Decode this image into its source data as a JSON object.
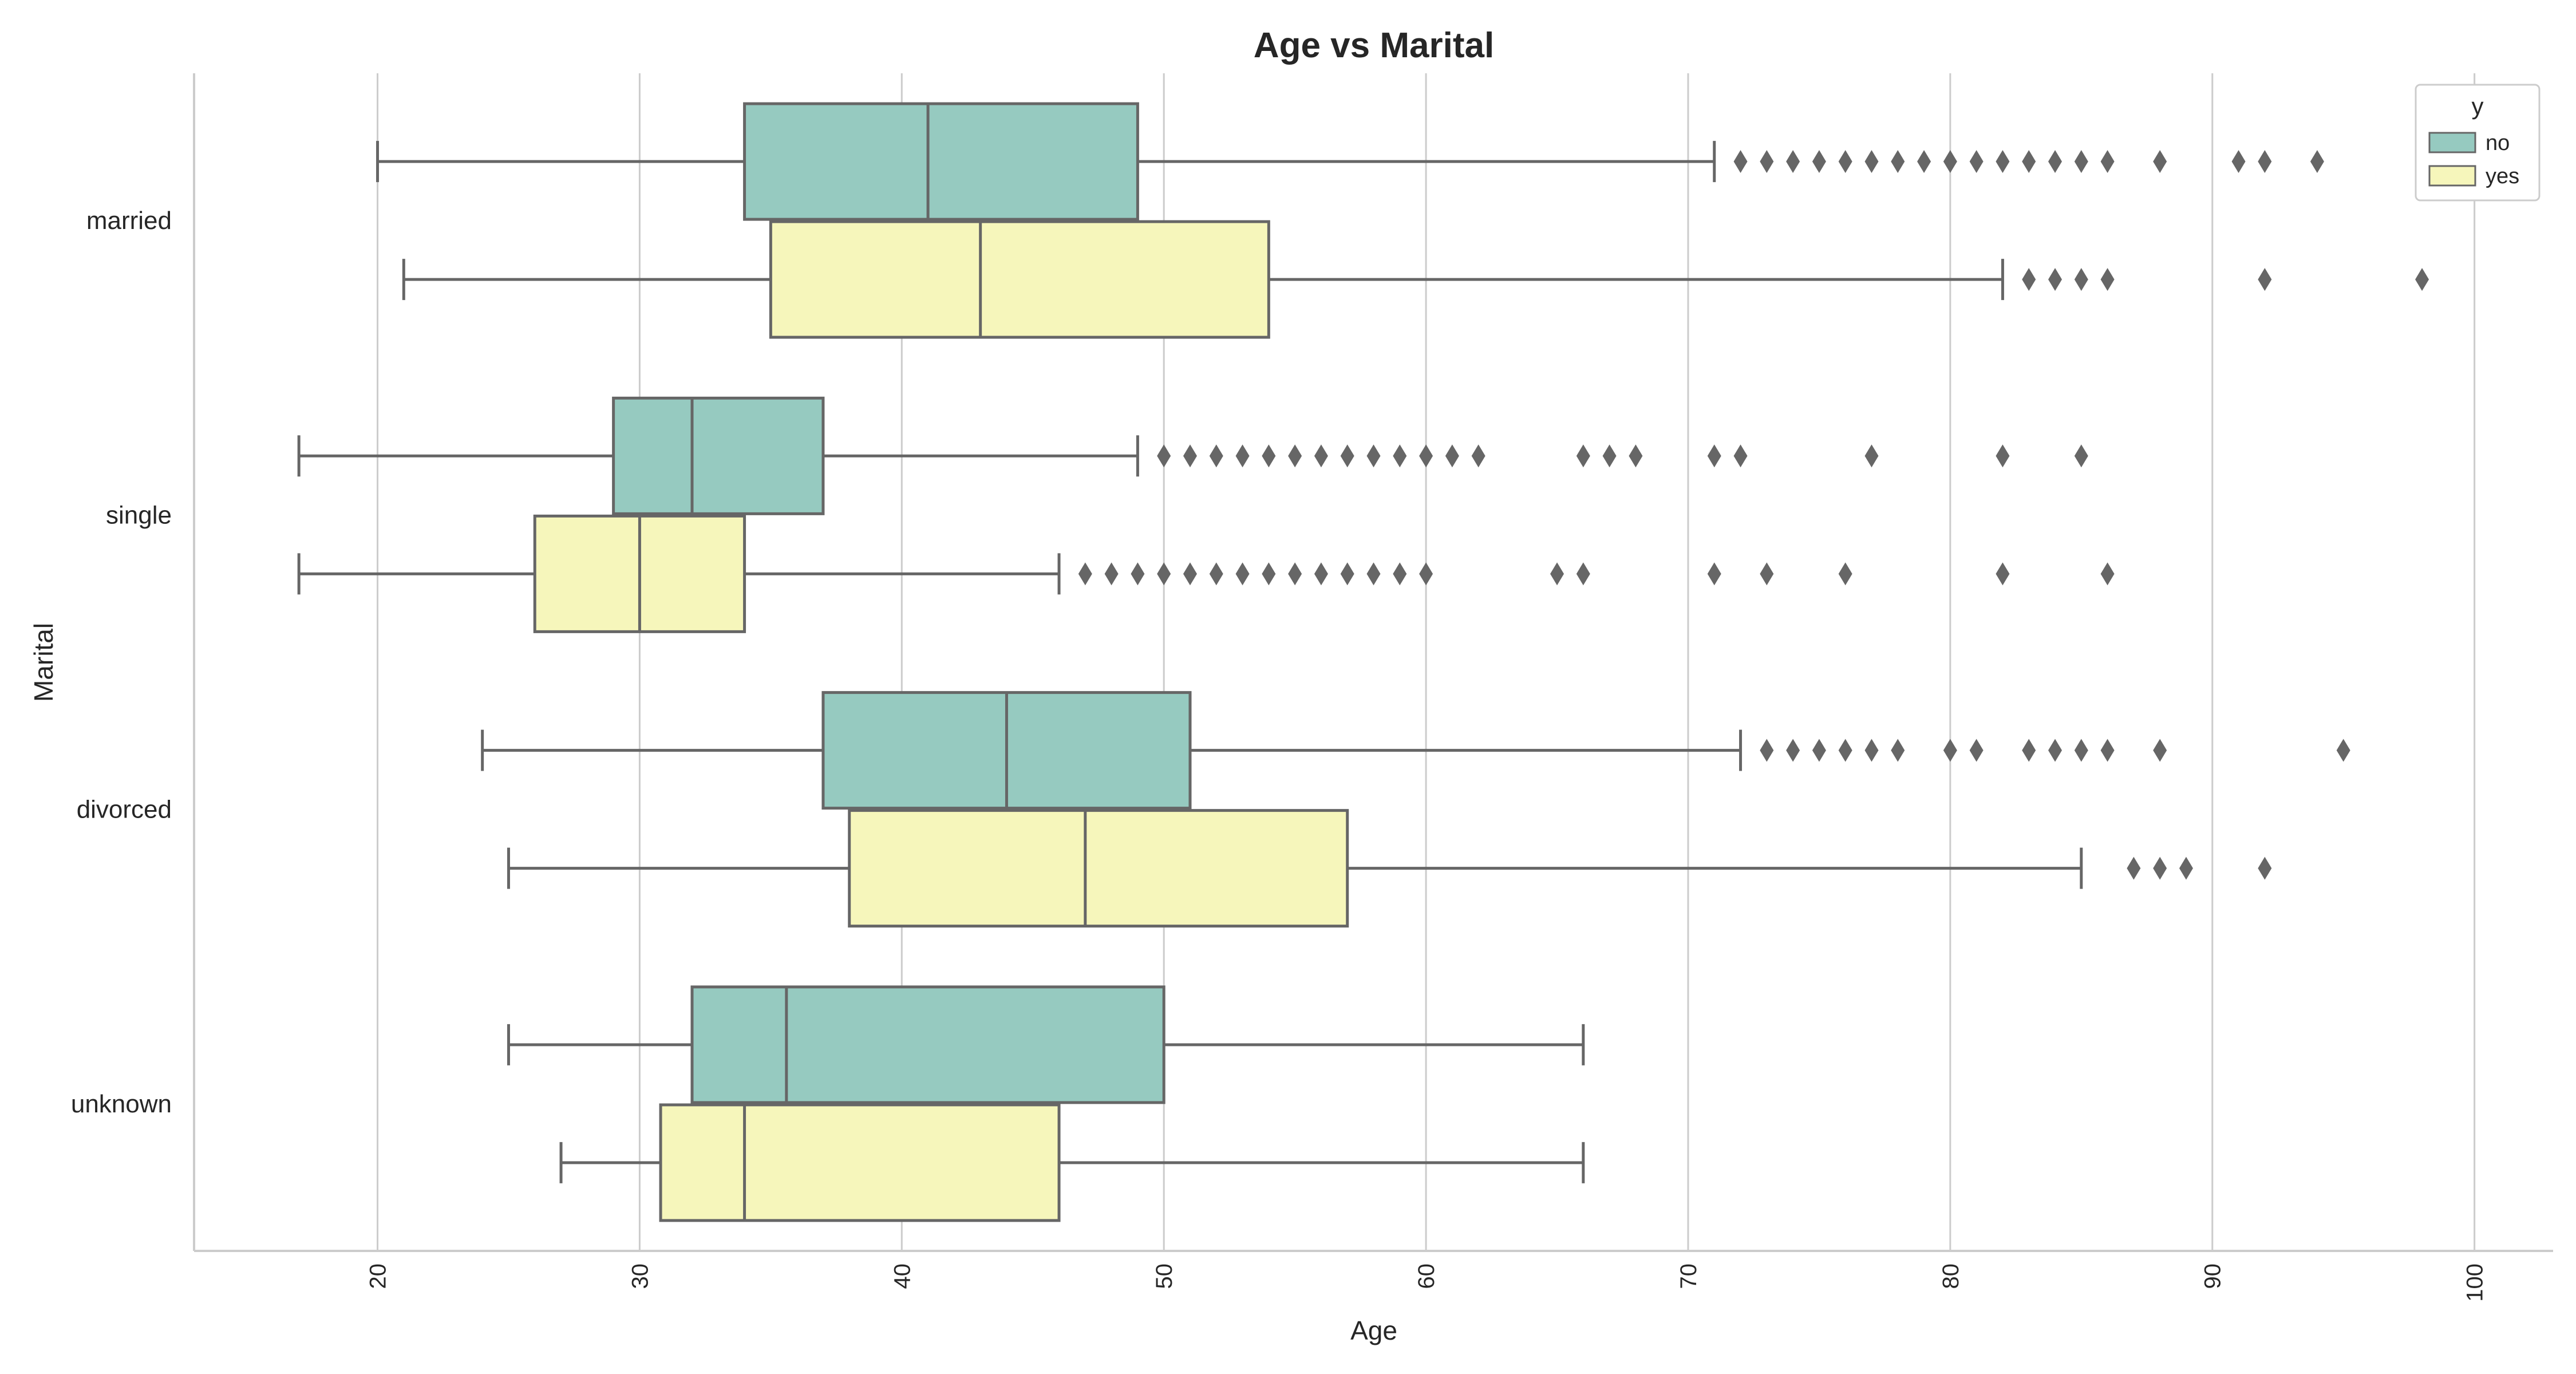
{
  "chart_data": {
    "type": "boxplot",
    "orientation": "horizontal",
    "title": "Age vs Marital",
    "xlabel": "Age",
    "ylabel": "Marital",
    "xlim": [
      13,
      103
    ],
    "xticks": [
      20,
      30,
      40,
      50,
      60,
      70,
      80,
      90,
      100
    ],
    "xtick_labels": [
      "20",
      "30",
      "40",
      "50",
      "60",
      "70",
      "80",
      "90",
      "100"
    ],
    "xtick_rotation": -90,
    "grid": "vertical",
    "categories": [
      "married",
      "single",
      "divorced",
      "unknown"
    ],
    "legend": {
      "title": "y",
      "placement": "top-right",
      "entries": [
        {
          "name": "no",
          "color": "#96cac0"
        },
        {
          "name": "yes",
          "color": "#f6f6bb"
        }
      ]
    },
    "box_edge_color": "#666666",
    "series": [
      {
        "name": "no",
        "color": "#96cac0",
        "boxes": [
          {
            "category": "married",
            "whislo": 20,
            "q1": 34,
            "med": 41,
            "q3": 49,
            "whishi": 71,
            "fliers": [
              72,
              73,
              74,
              75,
              76,
              77,
              78,
              79,
              80,
              81,
              82,
              83,
              84,
              85,
              86,
              88,
              91,
              92,
              94
            ]
          },
          {
            "category": "single",
            "whislo": 17,
            "q1": 29,
            "med": 32,
            "q3": 37,
            "whishi": 49,
            "fliers": [
              50,
              51,
              52,
              53,
              54,
              55,
              56,
              57,
              58,
              59,
              60,
              61,
              62,
              66,
              67,
              68,
              71,
              72,
              77,
              82,
              85
            ]
          },
          {
            "category": "divorced",
            "whislo": 24,
            "q1": 37,
            "med": 44,
            "q3": 51,
            "whishi": 72,
            "fliers": [
              73,
              74,
              75,
              76,
              77,
              78,
              80,
              81,
              83,
              84,
              85,
              86,
              88,
              95
            ]
          },
          {
            "category": "unknown",
            "whislo": 25,
            "q1": 32,
            "med": 35.6,
            "q3": 50,
            "whishi": 66,
            "fliers": []
          }
        ]
      },
      {
        "name": "yes",
        "color": "#f6f6bb",
        "boxes": [
          {
            "category": "married",
            "whislo": 21,
            "q1": 35,
            "med": 43,
            "q3": 54,
            "whishi": 82,
            "fliers": [
              83,
              84,
              85,
              86,
              92,
              98
            ]
          },
          {
            "category": "single",
            "whislo": 17,
            "q1": 26,
            "med": 30,
            "q3": 34,
            "whishi": 46,
            "fliers": [
              47,
              48,
              49,
              50,
              51,
              52,
              53,
              54,
              55,
              56,
              57,
              58,
              59,
              60,
              65,
              66,
              71,
              73,
              76,
              82,
              86
            ]
          },
          {
            "category": "divorced",
            "whislo": 25,
            "q1": 38,
            "med": 47,
            "q3": 57,
            "whishi": 85,
            "fliers": [
              87,
              88,
              89,
              92
            ]
          },
          {
            "category": "unknown",
            "whislo": 27,
            "q1": 30.8,
            "med": 34,
            "q3": 46,
            "whishi": 66,
            "fliers": []
          }
        ]
      }
    ]
  }
}
